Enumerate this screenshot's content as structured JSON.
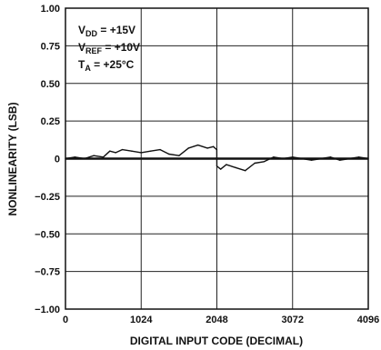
{
  "chart_data": {
    "type": "line",
    "xlabel": "DIGITAL INPUT CODE (DECIMAL)",
    "ylabel": "NONLINEARITY (LSB)",
    "xlim": [
      0,
      4096
    ],
    "ylim": [
      -1.0,
      1.0
    ],
    "grid": true,
    "x_ticks": [
      0,
      1024,
      2048,
      3072,
      4096
    ],
    "x_tick_labels": [
      "0",
      "1024",
      "2048",
      "3072",
      "4096"
    ],
    "y_ticks": [
      1.0,
      0.75,
      0.5,
      0.25,
      0,
      -0.25,
      -0.5,
      -0.75,
      -1.0
    ],
    "y_tick_labels": [
      "1.00",
      "0.75",
      "0.50",
      "0.25",
      "0",
      "−0.25",
      "−0.50",
      "−0.75",
      "−1.00"
    ],
    "annotations": [
      {
        "main": "V",
        "sub": "DD",
        "rest": " = +15V"
      },
      {
        "main": "V",
        "sub": "REF",
        "rest": " = +10V"
      },
      {
        "main": "T",
        "sub": "A",
        "rest": " = +25°C"
      }
    ],
    "series": [
      {
        "x": [
          0,
          128,
          256,
          384,
          512,
          600,
          680,
          768,
          896,
          1024,
          1152,
          1280,
          1400,
          1536,
          1664,
          1792,
          1920,
          2000,
          2047,
          2048,
          2100,
          2176,
          2304,
          2432,
          2560,
          2688,
          2816,
          2944,
          3072,
          3200,
          3328,
          3456,
          3584,
          3712,
          3840,
          3968,
          4096
        ],
        "y": [
          0.0,
          0.01,
          0.0,
          0.02,
          0.01,
          0.05,
          0.04,
          0.06,
          0.05,
          0.04,
          0.05,
          0.06,
          0.03,
          0.02,
          0.07,
          0.09,
          0.07,
          0.08,
          0.06,
          -0.05,
          -0.07,
          -0.04,
          -0.06,
          -0.08,
          -0.03,
          -0.02,
          0.01,
          0.0,
          0.01,
          0.0,
          -0.01,
          0.0,
          0.01,
          -0.01,
          0.0,
          0.01,
          0.0
        ]
      }
    ]
  }
}
